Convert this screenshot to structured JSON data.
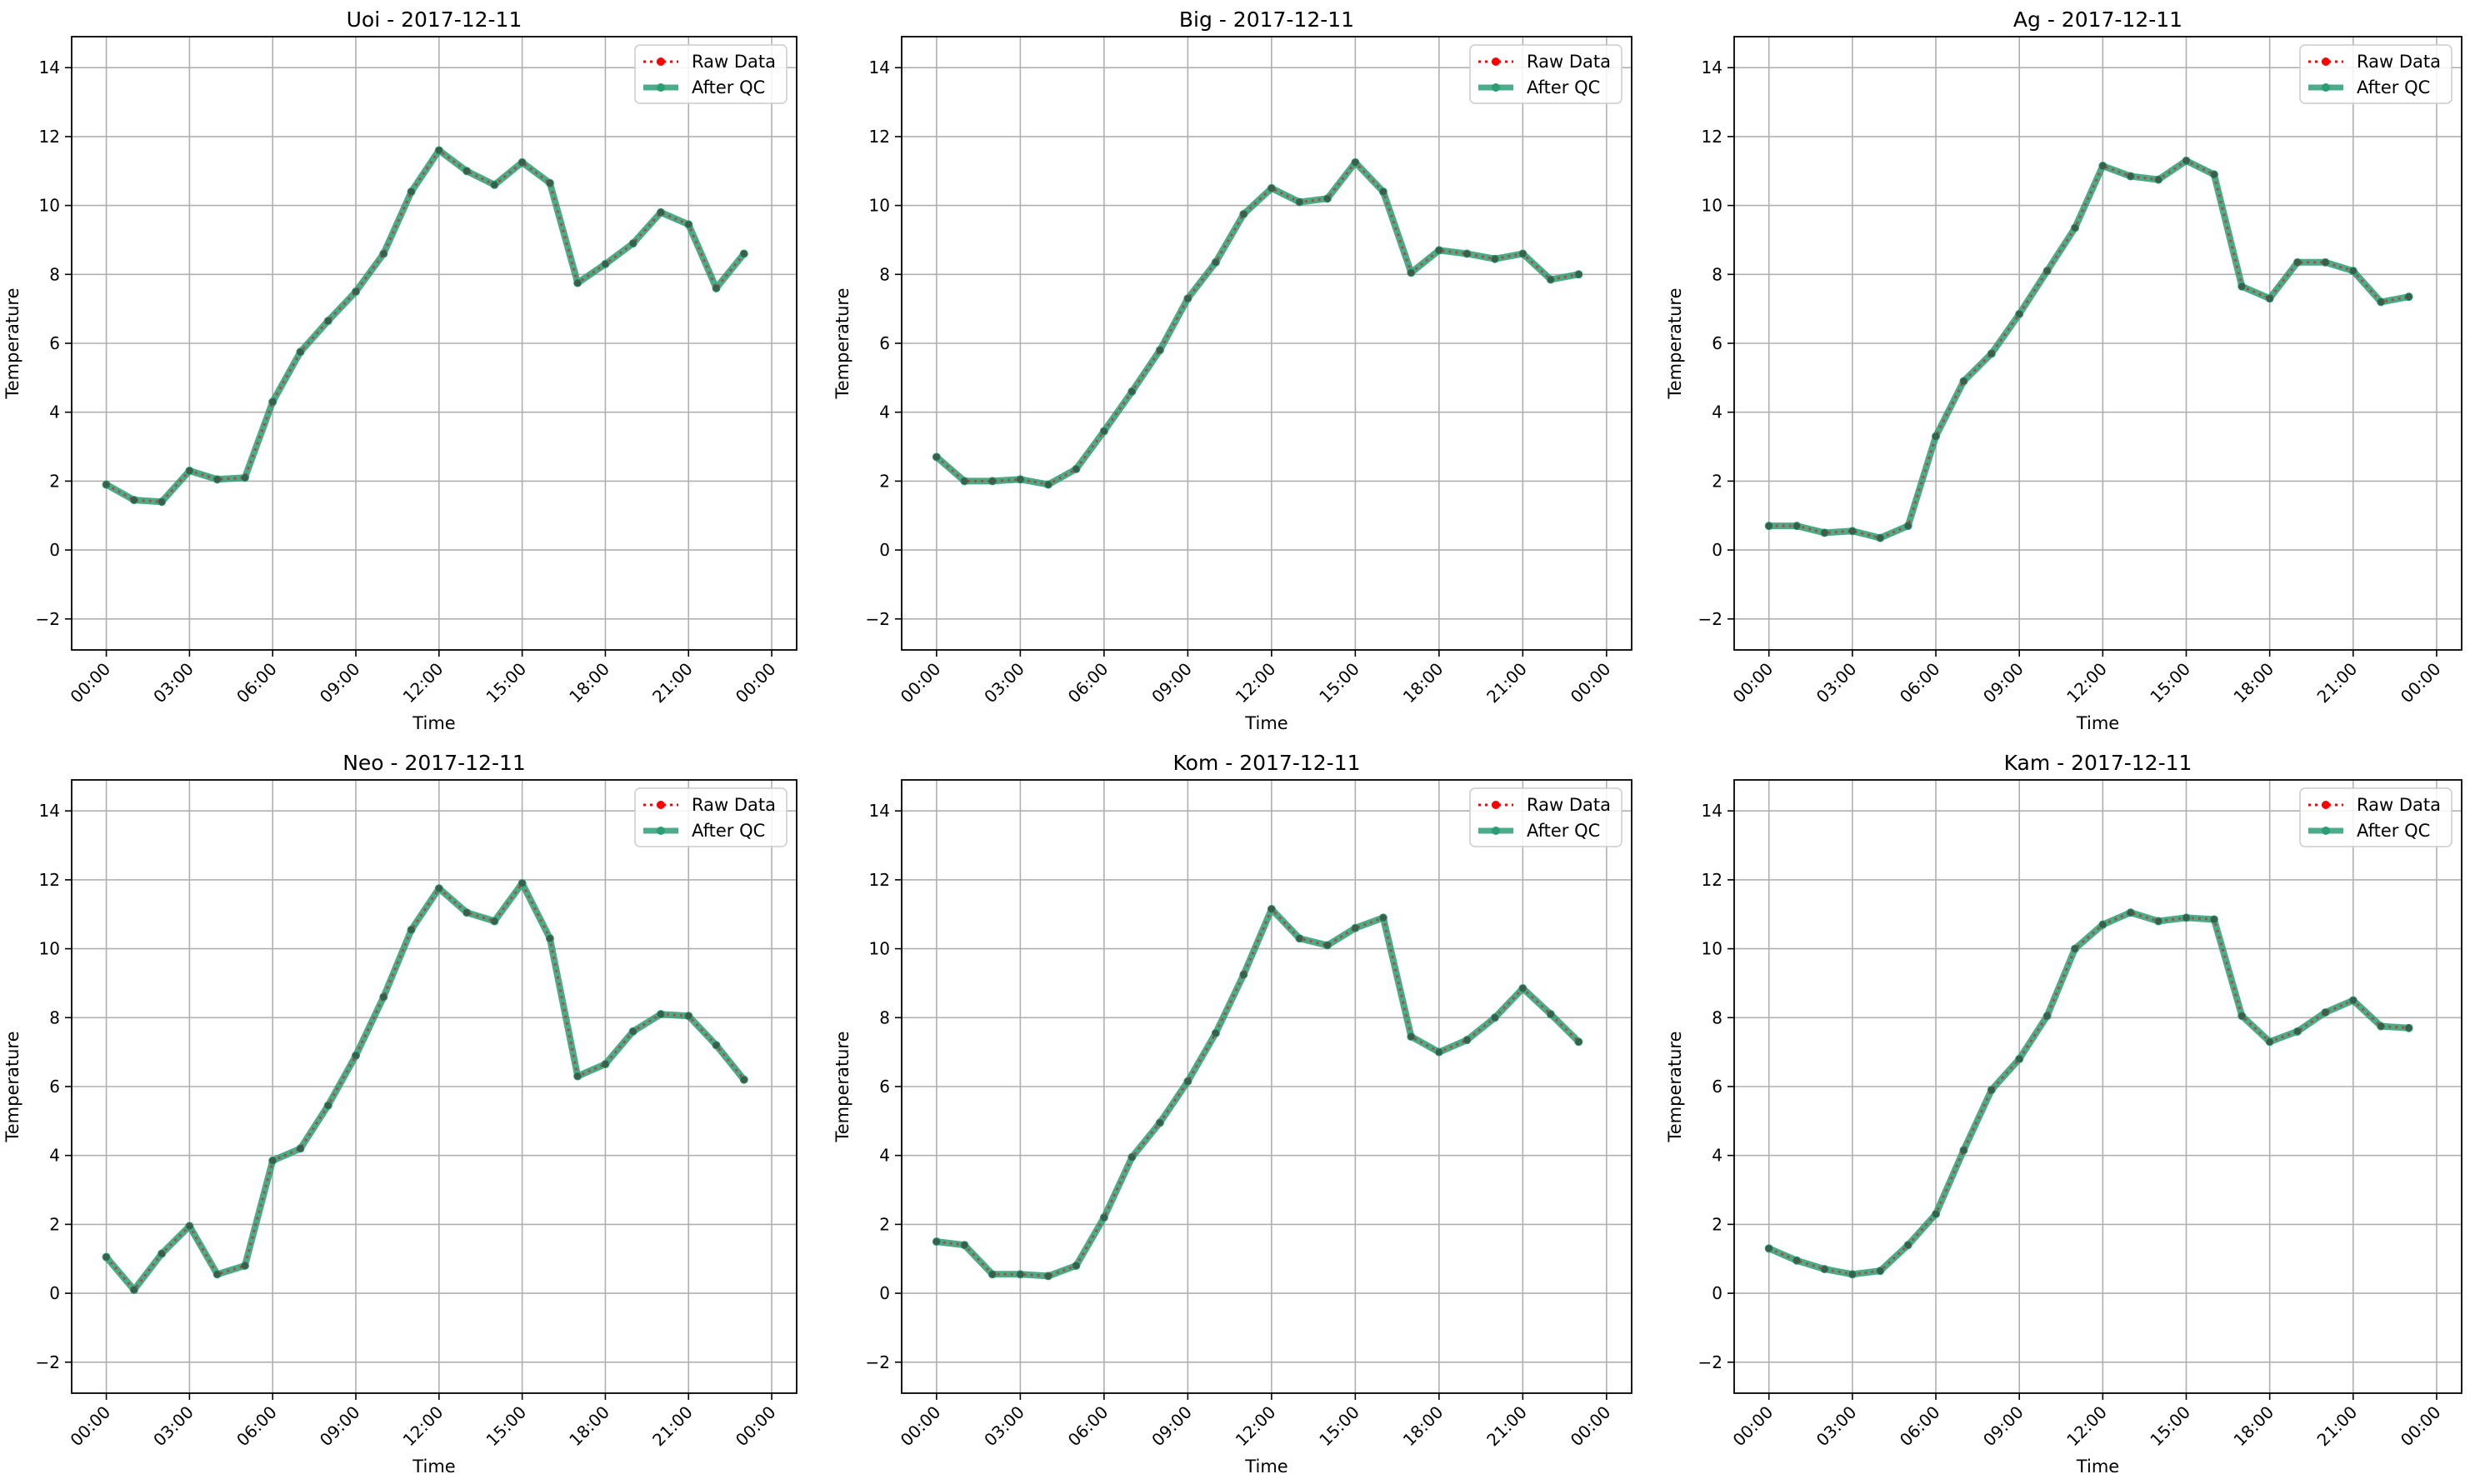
{
  "figure": {
    "background": "#ffffff"
  },
  "chart_data": [
    {
      "type": "line",
      "title": "Uoi - 2017-12-11",
      "xlabel": "Time",
      "ylabel": "Temperature",
      "x": [
        "00:00",
        "01:00",
        "02:00",
        "03:00",
        "04:00",
        "05:00",
        "06:00",
        "07:00",
        "08:00",
        "09:00",
        "10:00",
        "11:00",
        "12:00",
        "13:00",
        "14:00",
        "15:00",
        "16:00",
        "17:00",
        "18:00",
        "19:00",
        "20:00",
        "21:00",
        "22:00",
        "23:00"
      ],
      "xticks": [
        "00:00",
        "03:00",
        "06:00",
        "09:00",
        "12:00",
        "15:00",
        "18:00",
        "21:00",
        "00:00"
      ],
      "yticks": [
        -2,
        0,
        2,
        4,
        6,
        8,
        10,
        12,
        14
      ],
      "ylim": [
        -2.9,
        14.9
      ],
      "grid": true,
      "legend_position": "top-right",
      "series": [
        {
          "name": "Raw Data",
          "color": "#ff0000",
          "style": "dotted-with-dot-markers",
          "values": [
            1.9,
            1.45,
            1.4,
            2.3,
            2.05,
            2.1,
            4.3,
            5.75,
            6.65,
            7.5,
            8.6,
            10.4,
            11.6,
            11.0,
            10.6,
            11.25,
            10.65,
            7.75,
            8.3,
            8.9,
            9.8,
            9.45,
            7.6,
            8.6
          ]
        },
        {
          "name": "After QC",
          "color": "#2a9d73",
          "style": "solid-with-dot-markers",
          "values": [
            1.9,
            1.45,
            1.4,
            2.3,
            2.05,
            2.1,
            4.3,
            5.75,
            6.65,
            7.5,
            8.6,
            10.4,
            11.6,
            11.0,
            10.6,
            11.25,
            10.65,
            7.75,
            8.3,
            8.9,
            9.8,
            9.45,
            7.6,
            8.6
          ]
        }
      ]
    },
    {
      "type": "line",
      "title": "Big - 2017-12-11",
      "xlabel": "Time",
      "ylabel": "Temperature",
      "x": [
        "00:00",
        "01:00",
        "02:00",
        "03:00",
        "04:00",
        "05:00",
        "06:00",
        "07:00",
        "08:00",
        "09:00",
        "10:00",
        "11:00",
        "12:00",
        "13:00",
        "14:00",
        "15:00",
        "16:00",
        "17:00",
        "18:00",
        "19:00",
        "20:00",
        "21:00",
        "22:00",
        "23:00"
      ],
      "xticks": [
        "00:00",
        "03:00",
        "06:00",
        "09:00",
        "12:00",
        "15:00",
        "18:00",
        "21:00",
        "00:00"
      ],
      "yticks": [
        -2,
        0,
        2,
        4,
        6,
        8,
        10,
        12,
        14
      ],
      "ylim": [
        -2.9,
        14.9
      ],
      "grid": true,
      "legend_position": "top-right",
      "series": [
        {
          "name": "Raw Data",
          "color": "#ff0000",
          "style": "dotted-with-dot-markers",
          "values": [
            2.7,
            2.0,
            2.0,
            2.05,
            1.9,
            2.35,
            3.45,
            4.6,
            5.8,
            7.3,
            8.35,
            9.75,
            10.5,
            10.1,
            10.2,
            11.25,
            10.4,
            8.05,
            8.7,
            8.6,
            8.45,
            8.6,
            7.85,
            8.0
          ]
        },
        {
          "name": "After QC",
          "color": "#2a9d73",
          "style": "solid-with-dot-markers",
          "values": [
            2.7,
            2.0,
            2.0,
            2.05,
            1.9,
            2.35,
            3.45,
            4.6,
            5.8,
            7.3,
            8.35,
            9.75,
            10.5,
            10.1,
            10.2,
            11.25,
            10.4,
            8.05,
            8.7,
            8.6,
            8.45,
            8.6,
            7.85,
            8.0
          ]
        }
      ]
    },
    {
      "type": "line",
      "title": "Ag - 2017-12-11",
      "xlabel": "Time",
      "ylabel": "Temperature",
      "x": [
        "00:00",
        "01:00",
        "02:00",
        "03:00",
        "04:00",
        "05:00",
        "06:00",
        "07:00",
        "08:00",
        "09:00",
        "10:00",
        "11:00",
        "12:00",
        "13:00",
        "14:00",
        "15:00",
        "16:00",
        "17:00",
        "18:00",
        "19:00",
        "20:00",
        "21:00",
        "22:00",
        "23:00"
      ],
      "xticks": [
        "00:00",
        "03:00",
        "06:00",
        "09:00",
        "12:00",
        "15:00",
        "18:00",
        "21:00",
        "00:00"
      ],
      "yticks": [
        -2,
        0,
        2,
        4,
        6,
        8,
        10,
        12,
        14
      ],
      "ylim": [
        -2.9,
        14.9
      ],
      "grid": true,
      "legend_position": "top-right",
      "series": [
        {
          "name": "Raw Data",
          "color": "#ff0000",
          "style": "dotted-with-dot-markers",
          "values": [
            0.7,
            0.7,
            0.5,
            0.55,
            0.35,
            0.7,
            3.3,
            4.9,
            5.7,
            6.85,
            8.1,
            9.35,
            11.15,
            10.85,
            10.75,
            11.3,
            10.9,
            7.65,
            7.3,
            8.35,
            8.35,
            8.1,
            7.2,
            7.35
          ]
        },
        {
          "name": "After QC",
          "color": "#2a9d73",
          "style": "solid-with-dot-markers",
          "values": [
            0.7,
            0.7,
            0.5,
            0.55,
            0.35,
            0.7,
            3.3,
            4.9,
            5.7,
            6.85,
            8.1,
            9.35,
            11.15,
            10.85,
            10.75,
            11.3,
            10.9,
            7.65,
            7.3,
            8.35,
            8.35,
            8.1,
            7.2,
            7.35
          ]
        }
      ]
    },
    {
      "type": "line",
      "title": "Neo - 2017-12-11",
      "xlabel": "Time",
      "ylabel": "Temperature",
      "x": [
        "00:00",
        "01:00",
        "02:00",
        "03:00",
        "04:00",
        "05:00",
        "06:00",
        "07:00",
        "08:00",
        "09:00",
        "10:00",
        "11:00",
        "12:00",
        "13:00",
        "14:00",
        "15:00",
        "16:00",
        "17:00",
        "18:00",
        "19:00",
        "20:00",
        "21:00",
        "22:00",
        "23:00"
      ],
      "xticks": [
        "00:00",
        "03:00",
        "06:00",
        "09:00",
        "12:00",
        "15:00",
        "18:00",
        "21:00",
        "00:00"
      ],
      "yticks": [
        -2,
        0,
        2,
        4,
        6,
        8,
        10,
        12,
        14
      ],
      "ylim": [
        -2.9,
        14.9
      ],
      "grid": true,
      "legend_position": "top-right",
      "series": [
        {
          "name": "Raw Data",
          "color": "#ff0000",
          "style": "dotted-with-dot-markers",
          "values": [
            1.05,
            0.1,
            1.15,
            1.95,
            0.55,
            0.8,
            3.85,
            4.2,
            5.45,
            6.9,
            8.6,
            10.55,
            11.75,
            11.05,
            10.8,
            11.9,
            10.3,
            6.3,
            6.65,
            7.6,
            8.1,
            8.05,
            7.2,
            6.2
          ]
        },
        {
          "name": "After QC",
          "color": "#2a9d73",
          "style": "solid-with-dot-markers",
          "values": [
            1.05,
            0.1,
            1.15,
            1.95,
            0.55,
            0.8,
            3.85,
            4.2,
            5.45,
            6.9,
            8.6,
            10.55,
            11.75,
            11.05,
            10.8,
            11.9,
            10.3,
            6.3,
            6.65,
            7.6,
            8.1,
            8.05,
            7.2,
            6.2
          ]
        }
      ]
    },
    {
      "type": "line",
      "title": "Kom - 2017-12-11",
      "xlabel": "Time",
      "ylabel": "Temperature",
      "x": [
        "00:00",
        "01:00",
        "02:00",
        "03:00",
        "04:00",
        "05:00",
        "06:00",
        "07:00",
        "08:00",
        "09:00",
        "10:00",
        "11:00",
        "12:00",
        "13:00",
        "14:00",
        "15:00",
        "16:00",
        "17:00",
        "18:00",
        "19:00",
        "20:00",
        "21:00",
        "22:00",
        "23:00"
      ],
      "xticks": [
        "00:00",
        "03:00",
        "06:00",
        "09:00",
        "12:00",
        "15:00",
        "18:00",
        "21:00",
        "00:00"
      ],
      "yticks": [
        -2,
        0,
        2,
        4,
        6,
        8,
        10,
        12,
        14
      ],
      "ylim": [
        -2.9,
        14.9
      ],
      "grid": true,
      "legend_position": "top-right",
      "series": [
        {
          "name": "Raw Data",
          "color": "#ff0000",
          "style": "dotted-with-dot-markers",
          "values": [
            1.5,
            1.4,
            0.55,
            0.55,
            0.5,
            0.8,
            2.2,
            3.95,
            4.95,
            6.15,
            7.55,
            9.25,
            11.15,
            10.3,
            10.1,
            10.6,
            10.9,
            7.45,
            7.0,
            7.35,
            8.0,
            8.85,
            8.1,
            7.3
          ]
        },
        {
          "name": "After QC",
          "color": "#2a9d73",
          "style": "solid-with-dot-markers",
          "values": [
            1.5,
            1.4,
            0.55,
            0.55,
            0.5,
            0.8,
            2.2,
            3.95,
            4.95,
            6.15,
            7.55,
            9.25,
            11.15,
            10.3,
            10.1,
            10.6,
            10.9,
            7.45,
            7.0,
            7.35,
            8.0,
            8.85,
            8.1,
            7.3
          ]
        }
      ]
    },
    {
      "type": "line",
      "title": "Kam - 2017-12-11",
      "xlabel": "Time",
      "ylabel": "Temperature",
      "x": [
        "00:00",
        "01:00",
        "02:00",
        "03:00",
        "04:00",
        "05:00",
        "06:00",
        "07:00",
        "08:00",
        "09:00",
        "10:00",
        "11:00",
        "12:00",
        "13:00",
        "14:00",
        "15:00",
        "16:00",
        "17:00",
        "18:00",
        "19:00",
        "20:00",
        "21:00",
        "22:00",
        "23:00"
      ],
      "xticks": [
        "00:00",
        "03:00",
        "06:00",
        "09:00",
        "12:00",
        "15:00",
        "18:00",
        "21:00",
        "00:00"
      ],
      "yticks": [
        -2,
        0,
        2,
        4,
        6,
        8,
        10,
        12,
        14
      ],
      "ylim": [
        -2.9,
        14.9
      ],
      "grid": true,
      "legend_position": "top-right",
      "series": [
        {
          "name": "Raw Data",
          "color": "#ff0000",
          "style": "dotted-with-dot-markers",
          "values": [
            1.3,
            0.95,
            0.7,
            0.55,
            0.65,
            1.4,
            2.3,
            4.15,
            5.9,
            6.8,
            8.05,
            10.0,
            10.7,
            11.05,
            10.8,
            10.9,
            10.85,
            8.05,
            7.3,
            7.6,
            8.15,
            8.5,
            7.75,
            7.7
          ]
        },
        {
          "name": "After QC",
          "color": "#2a9d73",
          "style": "solid-with-dot-markers",
          "values": [
            1.3,
            0.95,
            0.7,
            0.55,
            0.65,
            1.4,
            2.3,
            4.15,
            5.9,
            6.8,
            8.05,
            10.0,
            10.7,
            11.05,
            10.8,
            10.9,
            10.85,
            8.05,
            7.3,
            7.6,
            8.15,
            8.5,
            7.75,
            7.7
          ]
        }
      ]
    }
  ]
}
